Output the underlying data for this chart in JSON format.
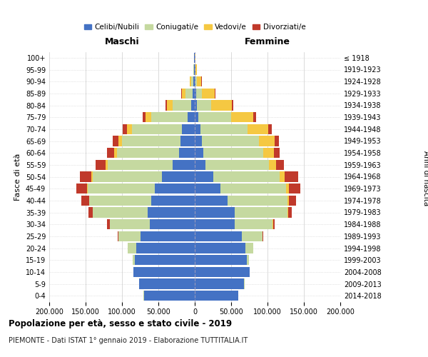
{
  "age_groups": [
    "0-4",
    "5-9",
    "10-14",
    "15-19",
    "20-24",
    "25-29",
    "30-34",
    "35-39",
    "40-44",
    "45-49",
    "50-54",
    "55-59",
    "60-64",
    "65-69",
    "70-74",
    "75-79",
    "80-84",
    "85-89",
    "90-94",
    "95-99",
    "100+"
  ],
  "birth_years": [
    "2014-2018",
    "2009-2013",
    "2004-2008",
    "1999-2003",
    "1994-1998",
    "1989-1993",
    "1984-1988",
    "1979-1983",
    "1974-1978",
    "1969-1973",
    "1964-1968",
    "1959-1963",
    "1954-1958",
    "1949-1953",
    "1944-1948",
    "1939-1943",
    "1934-1938",
    "1929-1933",
    "1924-1928",
    "1919-1923",
    "≤ 1918"
  ],
  "maschi": {
    "celibi": [
      70000,
      76000,
      84000,
      82000,
      80000,
      75000,
      62000,
      65000,
      60000,
      55000,
      45000,
      30000,
      22000,
      20000,
      18000,
      10000,
      5000,
      3000,
      2000,
      1000,
      500
    ],
    "coniugati": [
      100,
      200,
      500,
      3000,
      12000,
      30000,
      55000,
      75000,
      85000,
      92000,
      95000,
      90000,
      85000,
      80000,
      68000,
      50000,
      25000,
      10000,
      3000,
      800,
      200
    ],
    "vedovi": [
      1,
      1,
      2,
      5,
      20,
      50,
      100,
      300,
      500,
      1000,
      2000,
      3000,
      4000,
      5000,
      7000,
      8000,
      8000,
      5000,
      2000,
      400,
      100
    ],
    "divorziati": [
      2,
      5,
      10,
      50,
      300,
      1000,
      3000,
      6000,
      10000,
      15000,
      16000,
      13000,
      10000,
      8000,
      6000,
      4000,
      2000,
      500,
      200,
      50,
      10
    ]
  },
  "femmine": {
    "nubili": [
      60000,
      68000,
      75000,
      72000,
      70000,
      65000,
      55000,
      55000,
      45000,
      35000,
      25000,
      15000,
      12000,
      10000,
      8000,
      5000,
      2500,
      1500,
      1000,
      600,
      300
    ],
    "coniugate": [
      80,
      150,
      400,
      2500,
      10000,
      28000,
      52000,
      72000,
      82000,
      90000,
      92000,
      87000,
      82000,
      78000,
      65000,
      45000,
      20000,
      8000,
      2000,
      500,
      100
    ],
    "vedove": [
      1,
      1,
      3,
      10,
      50,
      150,
      400,
      1000,
      2000,
      4000,
      7000,
      10000,
      15000,
      22000,
      28000,
      30000,
      28000,
      18000,
      6000,
      1500,
      200
    ],
    "divorziate": [
      2,
      3,
      8,
      30,
      200,
      800,
      2500,
      5000,
      10000,
      16000,
      18000,
      11000,
      8000,
      6000,
      5000,
      4000,
      2000,
      800,
      400,
      100,
      10
    ]
  },
  "colors": {
    "celibi": "#4472c4",
    "coniugati": "#c5d9a0",
    "vedovi": "#f5c842",
    "divorziati": "#c0392b"
  },
  "xlim": 200000,
  "title": "Popolazione per età, sesso e stato civile - 2019",
  "subtitle": "PIEMONTE - Dati ISTAT 1° gennaio 2019 - Elaborazione TUTTITALIA.IT",
  "ylabel_left": "Fasce di età",
  "ylabel_right": "Anni di nascita",
  "xlabel_left": "Maschi",
  "xlabel_right": "Femmine"
}
